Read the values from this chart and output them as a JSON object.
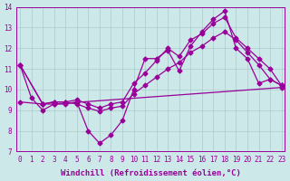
{
  "xlabel": "Windchill (Refroidissement éolien,°C)",
  "bg_color": "#cce8e8",
  "line_color": "#990099",
  "xlim": [
    -0.3,
    23.3
  ],
  "ylim": [
    7,
    14
  ],
  "yticks": [
    7,
    8,
    9,
    10,
    11,
    12,
    13,
    14
  ],
  "xticks": [
    0,
    1,
    2,
    3,
    4,
    5,
    6,
    7,
    8,
    9,
    10,
    11,
    12,
    13,
    14,
    15,
    16,
    17,
    18,
    19,
    20,
    21,
    22,
    23
  ],
  "series1_x": [
    0,
    1,
    2,
    3,
    4,
    5,
    6,
    7,
    8,
    9,
    10,
    11,
    12,
    13,
    14,
    15,
    16,
    17,
    18,
    19,
    20,
    21,
    22,
    23
  ],
  "series1_y": [
    11.2,
    9.6,
    9.0,
    9.3,
    9.3,
    9.4,
    8.0,
    7.4,
    7.8,
    8.5,
    10.0,
    11.5,
    11.5,
    11.9,
    10.9,
    12.1,
    12.8,
    13.4,
    13.8,
    12.0,
    11.5,
    10.3,
    10.5,
    10.2
  ],
  "series2_x": [
    0,
    2,
    3,
    4,
    5,
    6,
    7,
    8,
    9,
    10,
    11,
    12,
    13,
    14,
    15,
    16,
    17,
    18,
    19,
    20,
    21,
    22,
    23
  ],
  "series2_y": [
    11.2,
    9.3,
    9.4,
    9.4,
    9.5,
    9.3,
    9.1,
    9.3,
    9.4,
    10.3,
    10.8,
    11.4,
    12.0,
    11.6,
    12.4,
    12.7,
    13.2,
    13.5,
    12.5,
    12.0,
    11.5,
    11.0,
    10.2
  ],
  "series3_x": [
    0,
    2,
    3,
    4,
    5,
    6,
    7,
    8,
    9,
    10,
    11,
    12,
    13,
    14,
    15,
    16,
    17,
    18,
    19,
    20,
    21,
    22,
    23
  ],
  "series3_y": [
    11.2,
    9.3,
    9.4,
    9.4,
    9.3,
    9.1,
    8.95,
    9.1,
    9.2,
    9.8,
    10.2,
    10.6,
    11.0,
    11.3,
    11.8,
    12.1,
    12.5,
    12.8,
    12.4,
    11.8,
    11.2,
    10.5,
    10.2
  ],
  "series4_x": [
    0,
    2,
    3,
    23
  ],
  "series4_y": [
    9.4,
    9.3,
    9.3,
    10.1
  ],
  "grid_color": "#aacccc",
  "marker": "D",
  "markersize": 2.5,
  "linewidth": 0.9,
  "tick_fontsize": 5.5,
  "xlabel_fontsize": 6.5
}
